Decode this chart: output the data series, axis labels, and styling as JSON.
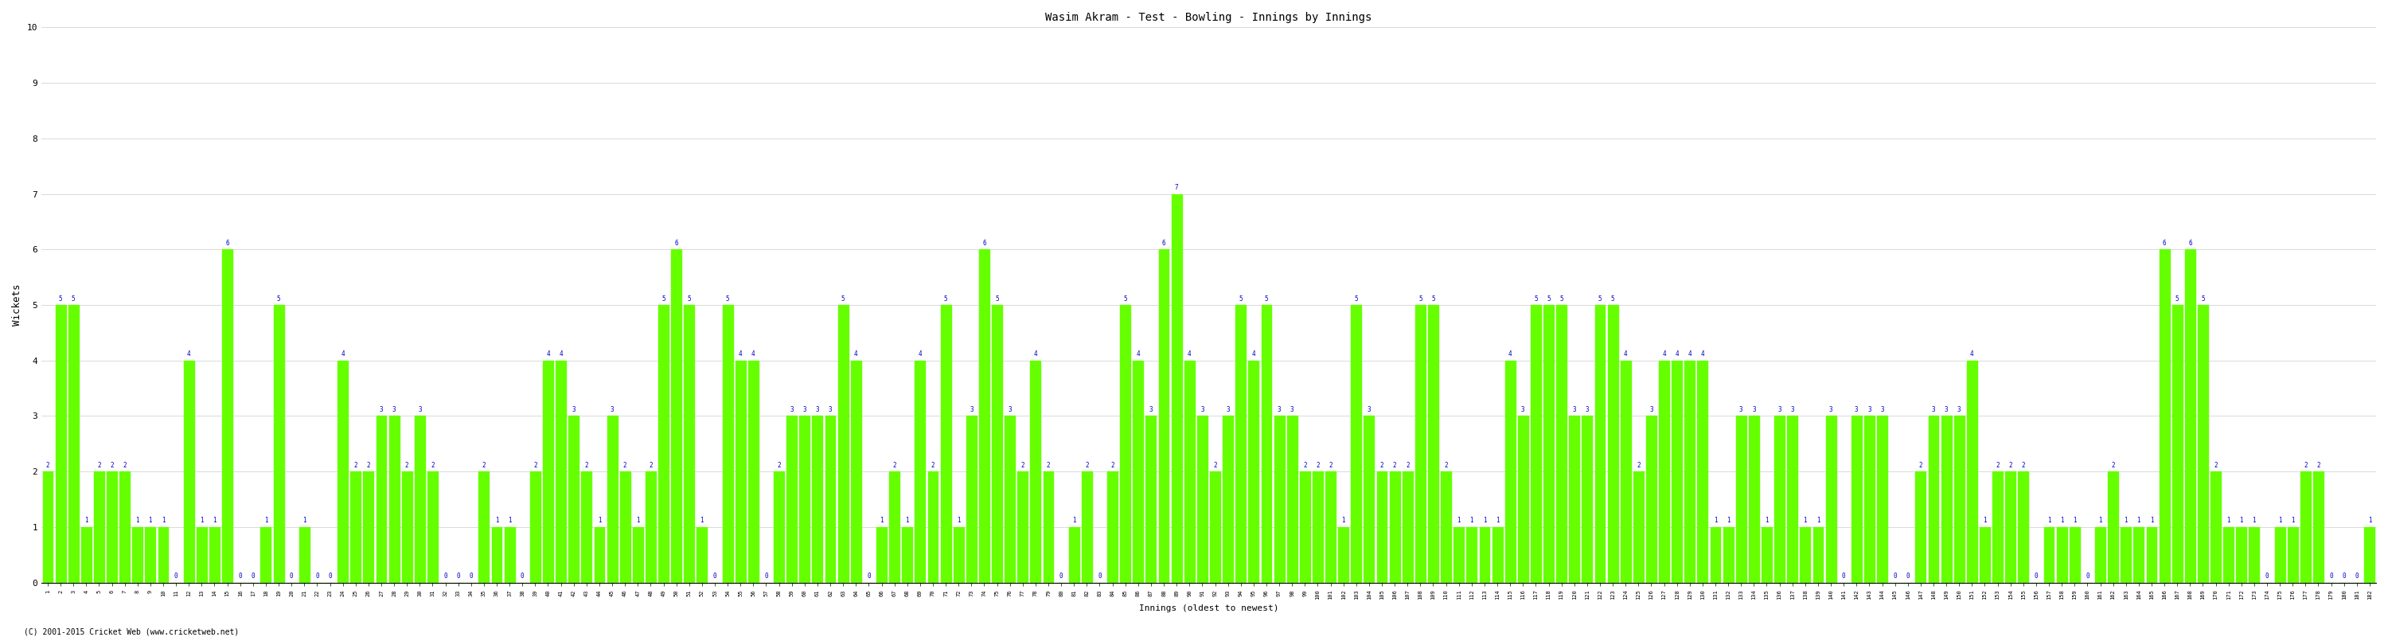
{
  "title": "Wasim Akram - Test - Bowling - Innings by Innings",
  "ylabel": "Wickets",
  "xlabel_footer": "Innings (oldest to newest)",
  "bar_color": "#66ff00",
  "label_color": "#0000cc",
  "background_color": "#ffffff",
  "grid_color": "#cccccc",
  "ylim": [
    0,
    10
  ],
  "yticks": [
    0,
    1,
    2,
    3,
    4,
    5,
    6,
    7,
    8,
    9,
    10
  ],
  "footnote": "(C) 2001-2015 Cricket Web (www.cricketweb.net)",
  "wickets": [
    2,
    5,
    5,
    1,
    2,
    2,
    2,
    1,
    1,
    1,
    0,
    4,
    1,
    1,
    6,
    0,
    0,
    1,
    5,
    0,
    1,
    0,
    0,
    4,
    2,
    2,
    3,
    3,
    2,
    3,
    2,
    0,
    0,
    0,
    2,
    1,
    1,
    0,
    2,
    4,
    4,
    3,
    2,
    1,
    3,
    2,
    1,
    2,
    5,
    6,
    5,
    1,
    0,
    5,
    4,
    4,
    0,
    2,
    3,
    3,
    3,
    3,
    5,
    4,
    0,
    1,
    2,
    1,
    4,
    2,
    5,
    1,
    3,
    6,
    5,
    3,
    2,
    4,
    2,
    0,
    1,
    2,
    0,
    2,
    5,
    4,
    3,
    6,
    7,
    4,
    3,
    2,
    3,
    5,
    4,
    5,
    3,
    3,
    2,
    2,
    2,
    1,
    5,
    3,
    2,
    2,
    2,
    5,
    5,
    2,
    1,
    1,
    1,
    1,
    4,
    3,
    5,
    5,
    5,
    3,
    3,
    5,
    5,
    4,
    2,
    3,
    4,
    4,
    4,
    4,
    1,
    1,
    3,
    3,
    1,
    3,
    3,
    1,
    1,
    3,
    0,
    3,
    3,
    3,
    0,
    0,
    2,
    3,
    3,
    3,
    4,
    1,
    2,
    2,
    2,
    0,
    1,
    1,
    1,
    0,
    1,
    2,
    1,
    1,
    1,
    6,
    5,
    6,
    5,
    2,
    1,
    1,
    1,
    0,
    1,
    1,
    2,
    2,
    0,
    0,
    0,
    1
  ]
}
